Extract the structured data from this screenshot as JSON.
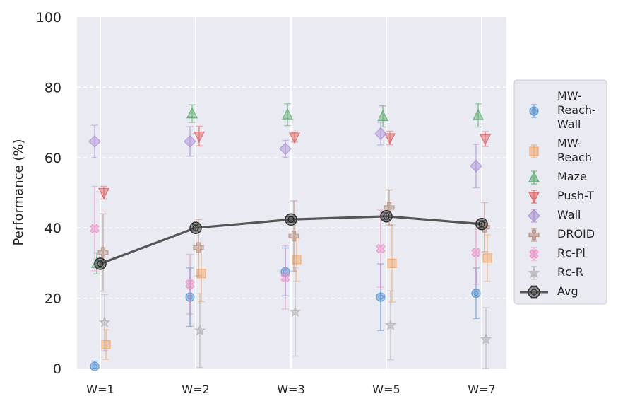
{
  "chart_data": {
    "type": "scatter",
    "ylabel": "Performance (%)",
    "xlabel": "",
    "ylim": [
      0,
      100
    ],
    "yticks": [
      0,
      20,
      40,
      60,
      80,
      100
    ],
    "categories": [
      "W=1",
      "W=2",
      "W=3",
      "W=5",
      "W=7"
    ],
    "grid": true,
    "legend_position": "right",
    "series": [
      {
        "name": "MW-Reach-Wall",
        "label_lines": [
          "MW-",
          "Reach-",
          "Wall"
        ],
        "marker": "circle",
        "color": "#4c8fd0",
        "values": [
          0.6,
          20.3,
          27.5,
          20.3,
          21.4
        ],
        "errors": [
          1.5,
          8.3,
          6.8,
          9.5,
          7.2
        ]
      },
      {
        "name": "MW-Reach",
        "label_lines": [
          "MW-",
          "Reach"
        ],
        "marker": "square",
        "color": "#f7a35c",
        "values": [
          6.8,
          27.0,
          31.0,
          29.9,
          31.4
        ],
        "errors": [
          4.2,
          8.0,
          6.2,
          11.0,
          6.6
        ]
      },
      {
        "name": "Maze",
        "label_lines": [
          "Maze"
        ],
        "marker": "triangle-up",
        "color": "#55a868",
        "values": [
          29.9,
          72.5,
          72.2,
          71.7,
          72.0
        ],
        "errors": [
          3.0,
          2.5,
          3.1,
          3.0,
          3.3
        ]
      },
      {
        "name": "Push-T",
        "label_lines": [
          "Push-T"
        ],
        "marker": "triangle-down",
        "color": "#e05a5a",
        "values": [
          50.0,
          66.1,
          65.8,
          65.6,
          65.3
        ],
        "errors": [
          1.8,
          2.8,
          1.4,
          1.9,
          2.1
        ]
      },
      {
        "name": "Wall",
        "label_lines": [
          "Wall"
        ],
        "marker": "diamond",
        "color": "#a98bd4",
        "values": [
          64.6,
          64.6,
          62.5,
          66.8,
          57.6
        ],
        "errors": [
          4.6,
          4.2,
          2.4,
          3.2,
          6.2
        ]
      },
      {
        "name": "DROID",
        "label_lines": [
          "DROID"
        ],
        "marker": "plus",
        "color": "#b48c7a",
        "values": [
          33.0,
          34.4,
          37.7,
          45.8,
          40.2
        ],
        "errors": [
          11.0,
          8.0,
          10.0,
          5.0,
          7.0
        ]
      },
      {
        "name": "Rc-Pl",
        "label_lines": [
          "Rc-Pl"
        ],
        "marker": "x",
        "color": "#f08cc8",
        "values": [
          39.8,
          24.0,
          25.9,
          34.1,
          33.0
        ],
        "errors": [
          12.0,
          8.5,
          9.0,
          11.0,
          9.0
        ]
      },
      {
        "name": "Rc-R",
        "label_lines": [
          "Rc-R"
        ],
        "marker": "star",
        "color": "#b0b0b0",
        "values": [
          13.1,
          10.8,
          16.1,
          12.3,
          8.3
        ],
        "errors": [
          8.0,
          10.5,
          12.6,
          9.8,
          9.0
        ]
      },
      {
        "name": "Avg",
        "label_lines": [
          "Avg"
        ],
        "marker": "circle-line",
        "color": "#555555",
        "values": [
          29.8,
          40.0,
          42.4,
          43.3,
          41.1
        ],
        "errors": [
          1.0,
          0.9,
          0.8,
          1.0,
          1.0
        ]
      }
    ]
  }
}
